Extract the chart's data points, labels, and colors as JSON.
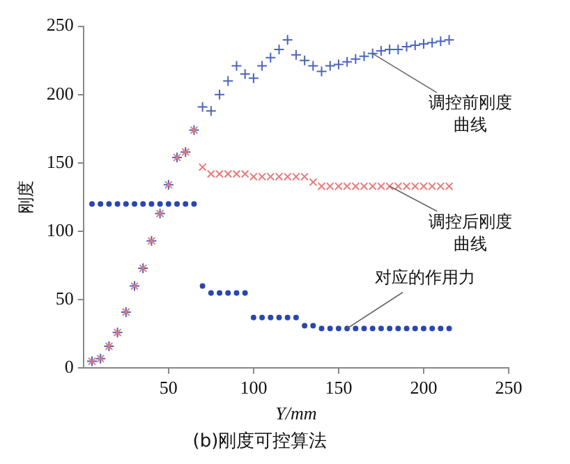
{
  "chart_data": {
    "type": "scatter",
    "title": "(b)刚度可控算法",
    "xlabel": "Y/mm",
    "ylabel": "刚度",
    "xlim": [
      0,
      250
    ],
    "xticks": [
      50,
      100,
      150,
      200,
      250
    ],
    "ylim": [
      0,
      250
    ],
    "yticks": [
      0,
      50,
      100,
      150,
      200,
      250
    ],
    "grid": false,
    "legend": false,
    "annotations": [
      {
        "text": "调控前刚度曲线",
        "x": 170,
        "y": 230
      },
      {
        "text": "调控后刚度曲线",
        "x": 180,
        "y": 133
      },
      {
        "text": "对应的作用力",
        "x": 155,
        "y": 29
      }
    ],
    "series": [
      {
        "color": "#e87a7a",
        "x": [
          5,
          10,
          15,
          20,
          25,
          30,
          35,
          40,
          45,
          50,
          55,
          60,
          65,
          70,
          75,
          80,
          85,
          90,
          95,
          100,
          105,
          110,
          115,
          120,
          125,
          130,
          135,
          140,
          145,
          150,
          155,
          160,
          165,
          170,
          175,
          180,
          185,
          190,
          195,
          200,
          205,
          210,
          215
        ],
        "values": [
          5,
          7,
          16,
          26,
          41,
          60,
          73,
          93,
          113,
          134,
          154,
          158,
          174,
          147,
          142,
          142,
          142,
          142,
          142,
          140,
          140,
          140,
          140,
          140,
          140,
          140,
          136,
          133,
          133,
          133,
          133,
          133,
          133,
          133,
          133,
          133,
          133,
          133,
          133,
          133,
          133,
          133,
          133
        ]
      },
      {
        "color": "#4a63c0",
        "marker": "cross",
        "x": [
          5,
          10,
          15,
          20,
          25,
          30,
          35,
          40,
          45,
          50,
          55,
          60,
          65,
          70,
          75,
          80,
          85,
          90,
          95,
          100,
          105,
          110,
          115,
          120,
          125,
          130,
          135,
          140,
          145,
          150,
          155,
          160,
          165,
          170,
          175,
          180,
          185,
          190,
          195,
          200,
          205,
          210,
          215
        ],
        "values": [
          5,
          7,
          16,
          26,
          41,
          60,
          73,
          93,
          113,
          134,
          154,
          158,
          174,
          191,
          188,
          200,
          210,
          221,
          215,
          212,
          221,
          227,
          233,
          240,
          229,
          225,
          221,
          217,
          221,
          222,
          224,
          226,
          228,
          230,
          232,
          233,
          233,
          235,
          236,
          237,
          238,
          239,
          240
        ]
      },
      {
        "color": "#2a47b0",
        "marker": "circle",
        "x": [
          5,
          10,
          15,
          20,
          25,
          30,
          35,
          40,
          45,
          50,
          55,
          60,
          65,
          70,
          75,
          80,
          85,
          90,
          95,
          100,
          105,
          110,
          115,
          120,
          125,
          130,
          135,
          140,
          145,
          150,
          155,
          160,
          165,
          170,
          175,
          180,
          185,
          190,
          195,
          200,
          205,
          210,
          215
        ],
        "values": [
          120,
          120,
          120,
          120,
          120,
          120,
          120,
          120,
          120,
          120,
          120,
          120,
          120,
          60,
          55,
          55,
          55,
          55,
          55,
          37,
          37,
          37,
          37,
          37,
          37,
          31,
          31,
          29,
          29,
          29,
          29,
          29,
          29,
          29,
          29,
          29,
          29,
          29,
          29,
          29,
          29,
          29,
          29
        ]
      }
    ]
  }
}
